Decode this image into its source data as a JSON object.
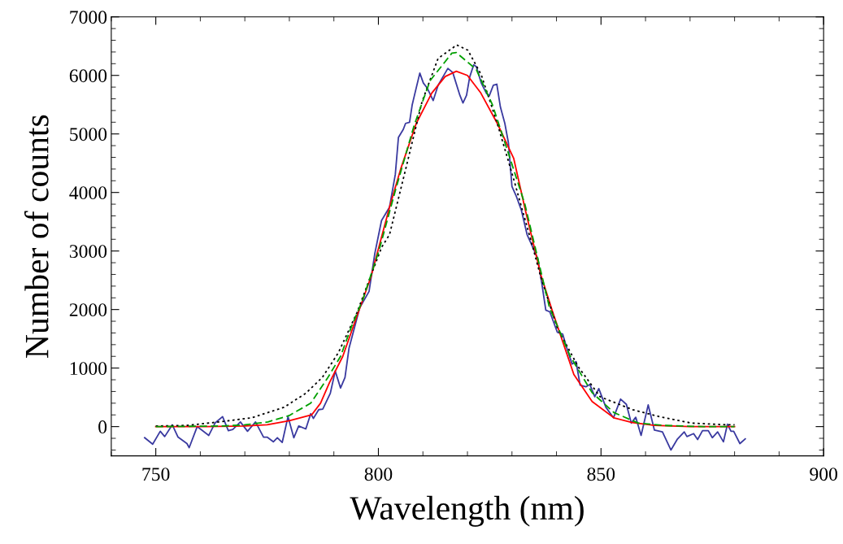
{
  "chart_data": {
    "type": "line",
    "xlabel": "Wavelength (nm)",
    "ylabel": "Number of counts",
    "xlim": [
      740,
      900
    ],
    "xticks": [
      750,
      800,
      850,
      900
    ],
    "ylim": [
      -500,
      7000
    ],
    "yticks": [
      0,
      1000,
      2000,
      3000,
      4000,
      5000,
      6000,
      7000
    ],
    "grid": false,
    "legend": false,
    "series": [
      {
        "color": "#3a3aa0",
        "line_style": "solid",
        "x": [
          747.5,
          749.3,
          751,
          752,
          753.7,
          755,
          757,
          757.5,
          759.3,
          760,
          761.9,
          763.3,
          765,
          766.3,
          767.3,
          769,
          770.6,
          772.4,
          774.2,
          775,
          776.4,
          777.3,
          778.4,
          779.7,
          781,
          782.1,
          783.7,
          784.8,
          785.4,
          786.6,
          787.5,
          789.2,
          790.3,
          791.5,
          792.5,
          793.4,
          795.8,
          797.9,
          799.2,
          800.7,
          802.5,
          803.8,
          804.5,
          805.6,
          806.1,
          807,
          807.6,
          809.3,
          810.1,
          811,
          812.3,
          813.4,
          814.3,
          815.6,
          816.7,
          818.3,
          819,
          819.8,
          820.5,
          821.4,
          822,
          823.1,
          824.3,
          824.9,
          825.8,
          826.6,
          827.4,
          828.4,
          829.2,
          830,
          831,
          832.1,
          833.4,
          834.7,
          835.8,
          836.7,
          837.6,
          838.5,
          840.2,
          841.4,
          842.2,
          843.5,
          844.4,
          845.3,
          846.6,
          847.5,
          848.6,
          849.5,
          851.1,
          852.8,
          854.4,
          855.7,
          856.8,
          857.8,
          859,
          860.6,
          862,
          863.8,
          865.7,
          867.1,
          868.7,
          869.3,
          870.8,
          871.7,
          872.8,
          874.1,
          875,
          876.2,
          877.5,
          878.4,
          879.2,
          879.8,
          881.2,
          882.4
        ],
        "values": [
          -190,
          -300,
          -80,
          -170,
          30,
          -180,
          -290,
          -360,
          0,
          -40,
          -150,
          60,
          170,
          -70,
          -50,
          80,
          -80,
          80,
          -180,
          -180,
          -260,
          -190,
          -270,
          170,
          -190,
          10,
          -40,
          220,
          140,
          290,
          300,
          570,
          950,
          660,
          840,
          1340,
          2030,
          2310,
          2960,
          3520,
          3750,
          4310,
          4940,
          5080,
          5180,
          5200,
          5500,
          6040,
          5870,
          5780,
          5570,
          5830,
          5950,
          6120,
          6050,
          5660,
          5530,
          5660,
          5970,
          6180,
          6150,
          5870,
          5690,
          5650,
          5830,
          5850,
          5460,
          5180,
          4850,
          4100,
          3930,
          3700,
          3280,
          3060,
          2870,
          2450,
          1990,
          1960,
          1610,
          1580,
          1370,
          1070,
          1110,
          710,
          680,
          720,
          510,
          650,
          330,
          150,
          470,
          380,
          60,
          160,
          -150,
          370,
          -60,
          -90,
          -400,
          -220,
          -90,
          -170,
          -120,
          -220,
          -70,
          -70,
          -190,
          -90,
          -260,
          40,
          -80,
          -80,
          -290,
          -210
        ]
      },
      {
        "color": "#000000",
        "line_style": "dotted",
        "x": [
          750,
          757,
          764.2,
          771.5,
          778.8,
          783.7,
          787.4,
          791,
          795.2,
          800.7,
          802.5,
          806.1,
          809.8,
          813.4,
          817.6,
          820.1,
          823.1,
          826.7,
          830.3,
          834.7,
          836.5,
          840.2,
          844.9,
          849.8,
          857.1,
          863.1,
          870.4,
          878.4,
          880
        ],
        "values": [
          10,
          20,
          80,
          150,
          330,
          570,
          840,
          1260,
          1950,
          3060,
          3280,
          4390,
          5550,
          6290,
          6520,
          6430,
          6010,
          5180,
          4250,
          3060,
          2550,
          1680,
          1020,
          510,
          290,
          170,
          60,
          30,
          30
        ]
      },
      {
        "color": "#00a000",
        "line_style": "dashed",
        "x": [
          750,
          765,
          770,
          775.2,
          780,
          784.8,
          788.5,
          791.5,
          794,
          796.5,
          800.1,
          803.8,
          808,
          811.6,
          816.5,
          817.5,
          822,
          825.6,
          829.2,
          832.9,
          836.5,
          838.4,
          843.1,
          848,
          852.9,
          858.4,
          864,
          873,
          880
        ],
        "values": [
          0,
          10,
          30,
          80,
          190,
          400,
          820,
          1200,
          1720,
          2170,
          3000,
          4030,
          5140,
          5910,
          6380,
          6390,
          6100,
          5500,
          4670,
          3800,
          2650,
          2040,
          1200,
          580,
          240,
          60,
          20,
          0,
          0
        ]
      },
      {
        "color": "#ff0000",
        "line_style": "solid",
        "x": [
          750,
          760,
          770,
          775,
          780,
          785,
          787,
          789,
          792,
          795,
          798.3,
          802.5,
          805,
          808.5,
          812,
          815,
          817.5,
          820,
          823,
          826.7,
          830.4,
          833,
          836.5,
          839,
          843.9,
          848,
          852.9,
          857,
          862,
          870,
          880
        ],
        "values": [
          0,
          0,
          10,
          30,
          100,
          200,
          400,
          750,
          1200,
          1850,
          2550,
          3750,
          4400,
          5180,
          5700,
          5980,
          6070,
          6000,
          5700,
          5180,
          4580,
          3700,
          2590,
          1990,
          890,
          430,
          150,
          70,
          20,
          0,
          0
        ]
      }
    ]
  }
}
